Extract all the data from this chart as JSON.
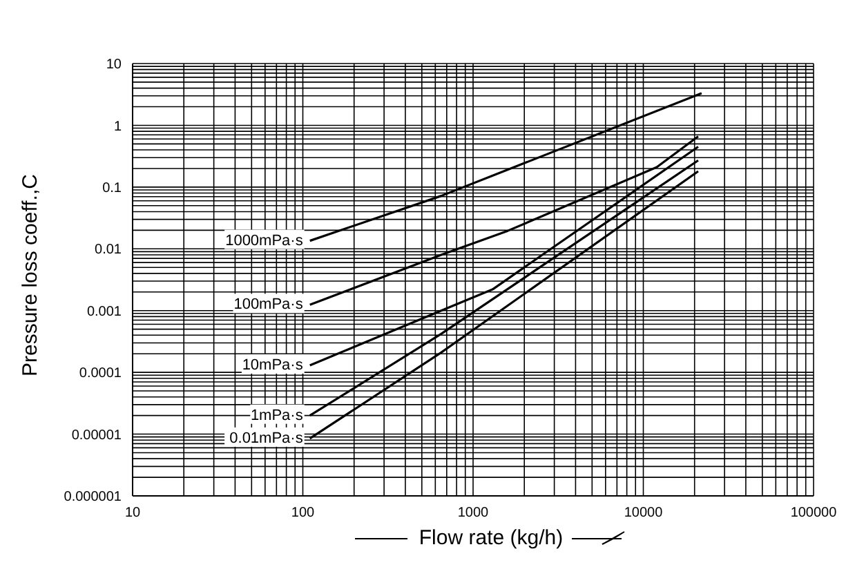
{
  "chart_data": {
    "type": "line",
    "xlabel": "Flow rate (kg/h)",
    "ylabel": "Pressure loss coeff.,C",
    "log": "xy",
    "grid": true,
    "marker": "none",
    "line_style": "solid",
    "xlim": [
      10,
      100000
    ],
    "ylim": [
      1e-06,
      10
    ],
    "xticks": [
      10,
      {
        "value": 20,
        "label": null
      },
      {
        "value": 30,
        "label": null
      },
      {
        "value": 40,
        "label": null
      },
      {
        "value": 50,
        "label": null
      },
      {
        "value": 60,
        "label": null
      },
      {
        "value": 70,
        "label": null
      },
      {
        "value": 80,
        "label": null
      },
      {
        "value": 90,
        "label": null
      },
      100,
      {
        "value": 200,
        "label": null
      },
      {
        "value": 300,
        "label": null
      },
      {
        "value": 400,
        "label": null
      },
      {
        "value": 500,
        "label": null
      },
      {
        "value": 600,
        "label": null
      },
      {
        "value": 700,
        "label": null
      },
      {
        "value": 800,
        "label": null
      },
      {
        "value": 900,
        "label": null
      },
      1000,
      {
        "value": 2000,
        "label": null
      },
      {
        "value": 3000,
        "label": null
      },
      {
        "value": 4000,
        "label": null
      },
      {
        "value": 5000,
        "label": null
      },
      {
        "value": 6000,
        "label": null
      },
      {
        "value": 7000,
        "label": null
      },
      {
        "value": 8000,
        "label": null
      },
      {
        "value": 9000,
        "label": null
      },
      10000,
      {
        "value": 20000,
        "label": null
      },
      {
        "value": 30000,
        "label": null
      },
      {
        "value": 40000,
        "label": null
      },
      {
        "value": 50000,
        "label": null
      },
      {
        "value": 60000,
        "label": null
      },
      {
        "value": 70000,
        "label": null
      },
      {
        "value": 80000,
        "label": null
      },
      {
        "value": 90000,
        "label": null
      },
      100000
    ],
    "yticks": [
      {
        "value": 1e-06,
        "label": "0.000001"
      },
      {
        "value": 2e-06,
        "label": null
      },
      {
        "value": 3e-06,
        "label": null
      },
      {
        "value": 4e-06,
        "label": null
      },
      {
        "value": 5e-06,
        "label": null
      },
      {
        "value": 6e-06,
        "label": null
      },
      {
        "value": 7e-06,
        "label": null
      },
      {
        "value": 8e-06,
        "label": null
      },
      {
        "value": 9e-06,
        "label": null
      },
      {
        "value": 1e-05,
        "label": "0.00001"
      },
      {
        "value": 2e-05,
        "label": null
      },
      {
        "value": 3e-05,
        "label": null
      },
      {
        "value": 4e-05,
        "label": null
      },
      {
        "value": 5e-05,
        "label": null
      },
      {
        "value": 6e-05,
        "label": null
      },
      {
        "value": 7e-05,
        "label": null
      },
      {
        "value": 8e-05,
        "label": null
      },
      {
        "value": 9e-05,
        "label": null
      },
      0.0001,
      {
        "value": 0.0002,
        "label": null
      },
      {
        "value": 0.0003,
        "label": null
      },
      {
        "value": 0.0004,
        "label": null
      },
      {
        "value": 0.0005,
        "label": null
      },
      {
        "value": 0.0006,
        "label": null
      },
      {
        "value": 0.0007,
        "label": null
      },
      {
        "value": 0.0008,
        "label": null
      },
      {
        "value": 0.0009,
        "label": null
      },
      0.001,
      {
        "value": 0.002,
        "label": null
      },
      {
        "value": 0.003,
        "label": null
      },
      {
        "value": 0.004,
        "label": null
      },
      {
        "value": 0.005,
        "label": null
      },
      {
        "value": 0.006,
        "label": null
      },
      {
        "value": 0.007,
        "label": null
      },
      {
        "value": 0.008,
        "label": null
      },
      {
        "value": 0.009,
        "label": null
      },
      0.01,
      {
        "value": 0.02,
        "label": null
      },
      {
        "value": 0.03,
        "label": null
      },
      {
        "value": 0.04,
        "label": null
      },
      {
        "value": 0.05,
        "label": null
      },
      {
        "value": 0.06,
        "label": null
      },
      {
        "value": 0.07,
        "label": null
      },
      {
        "value": 0.08,
        "label": null
      },
      {
        "value": 0.09,
        "label": null
      },
      0.1,
      {
        "value": 0.2,
        "label": null
      },
      {
        "value": 0.3,
        "label": null
      },
      {
        "value": 0.4,
        "label": null
      },
      {
        "value": 0.5,
        "label": null
      },
      {
        "value": 0.6,
        "label": null
      },
      {
        "value": 0.7,
        "label": null
      },
      {
        "value": 0.8,
        "label": null
      },
      {
        "value": 0.9,
        "label": null
      },
      1,
      {
        "value": 2,
        "label": null
      },
      {
        "value": 3,
        "label": null
      },
      {
        "value": 4,
        "label": null
      },
      {
        "value": 5,
        "label": null
      },
      {
        "value": 6,
        "label": null
      },
      {
        "value": 7,
        "label": null
      },
      {
        "value": 8,
        "label": null
      },
      {
        "value": 9,
        "label": null
      },
      10
    ],
    "series": [
      {
        "name": "1000mPa·s",
        "color": "#000000",
        "x": [
          110,
          650,
          22000
        ],
        "values": [
          0.0135,
          0.072,
          3.3
        ]
      },
      {
        "name": "100mPa·s",
        "color": "#000000",
        "x": [
          110,
          650,
          1600,
          12000,
          21000
        ],
        "values": [
          0.00124,
          0.008,
          0.0196,
          0.21,
          0.66
        ]
      },
      {
        "name": "10mPa·s",
        "color": "#000000",
        "x": [
          110,
          650,
          1300,
          21000
        ],
        "values": [
          0.00013,
          0.001,
          0.0022,
          0.45
        ]
      },
      {
        "name": "1mPa·s",
        "color": "#000000",
        "x": [
          110,
          650,
          21000
        ],
        "values": [
          2e-05,
          0.00042,
          0.27
        ]
      },
      {
        "name": "0.01mPa·s",
        "color": "#000000",
        "x": [
          110,
          650,
          21000
        ],
        "values": [
          8.5e-06,
          0.00021,
          0.18
        ]
      }
    ]
  }
}
